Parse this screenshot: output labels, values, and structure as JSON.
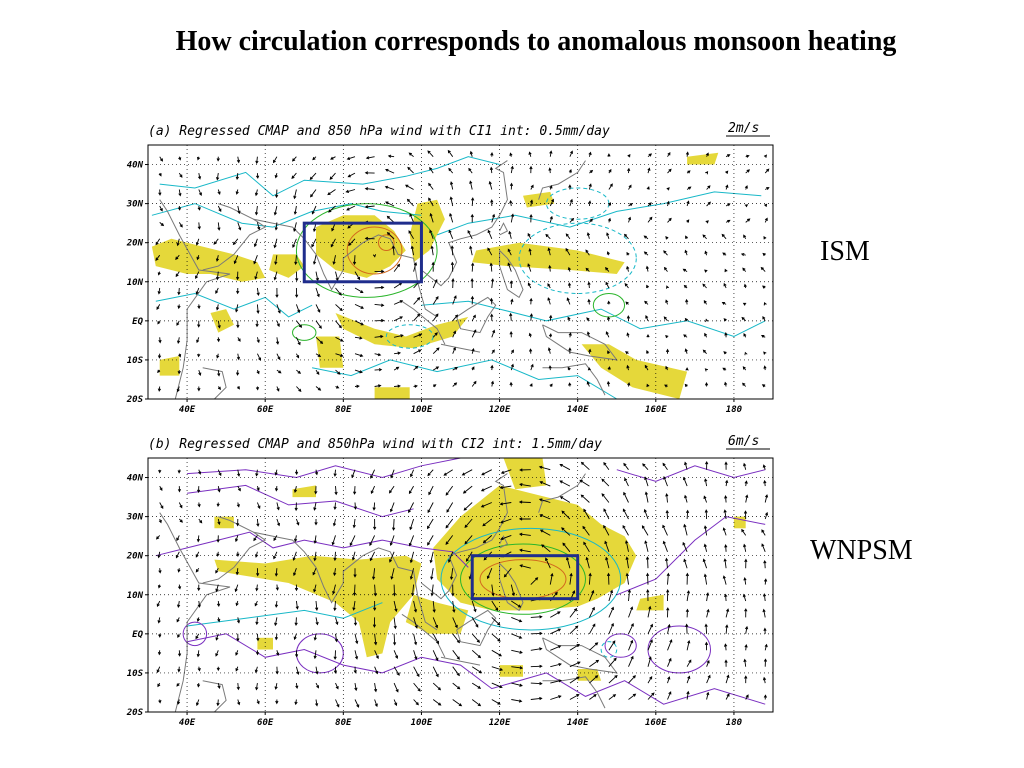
{
  "slide": {
    "title": "How circulation corresponds to anomalous monsoon heating"
  },
  "colors": {
    "shading": "#e5d83a",
    "box": "#1f2d8c",
    "cyan_contour": "#18b8c8",
    "green_contour": "#2bb52b",
    "orange_contour": "#d2691e",
    "purple_contour": "#7a2fc0",
    "coast": "#7a7a7a"
  },
  "axes": {
    "lon_labels": [
      "40E",
      "60E",
      "80E",
      "100E",
      "120E",
      "140E",
      "160E",
      "180"
    ],
    "lat_labels": [
      "40N",
      "30N",
      "20N",
      "10N",
      "EQ",
      "10S",
      "20S"
    ],
    "lon_range": [
      30,
      190
    ],
    "lat_range": [
      -20,
      45
    ]
  },
  "panels": [
    {
      "id": "a",
      "title": "(a) Regressed CMAP and 850 hPa wind with CI1 int: 0.5mm/day",
      "scale_label": "2m/s",
      "side_label": "ISM",
      "box": {
        "lon": [
          70,
          100
        ],
        "lat": [
          10,
          25
        ]
      }
    },
    {
      "id": "b",
      "title": "(b) Regressed CMAP and 850hPa wind with CI2 int: 1.5mm/day",
      "scale_label": "6m/s",
      "side_label": "WNPSM",
      "box": {
        "lon": [
          113,
          140
        ],
        "lat": [
          9,
          20
        ]
      }
    }
  ]
}
